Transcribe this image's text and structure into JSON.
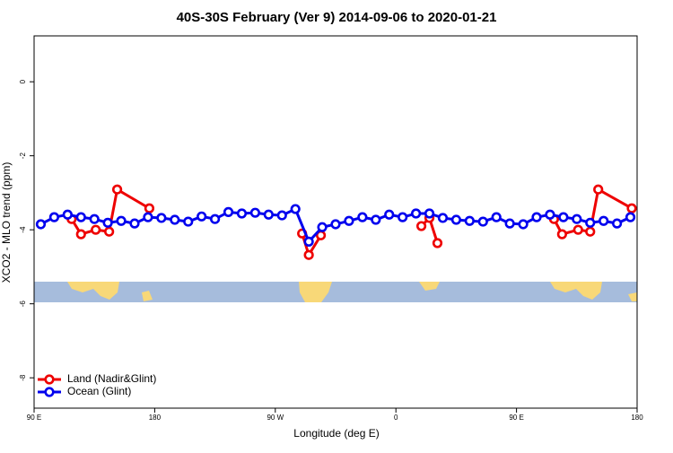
{
  "chart_data": {
    "type": "line",
    "title": "40S-30S February (Ver 9)   2014-09-06 to 2020-01-21",
    "xlabel": "Longitude (deg E)",
    "ylabel": "XCO2 - MLO trend (ppm)",
    "xlim": [
      90,
      540
    ],
    "xticks": [
      {
        "value": 90,
        "label": "90 E"
      },
      {
        "value": 180,
        "label": "180"
      },
      {
        "value": 270,
        "label": "90 W"
      },
      {
        "value": 360,
        "label": "0"
      },
      {
        "value": 450,
        "label": "90 E"
      },
      {
        "value": 540,
        "label": "180"
      }
    ],
    "ylim": [
      -8.82,
      1.24
    ],
    "yticks": [
      0,
      -2,
      -4,
      -6,
      -8
    ],
    "legend": "bottom-left",
    "x": [
      95,
      105,
      115,
      125,
      135,
      145,
      155,
      165,
      175,
      185,
      195,
      205,
      215,
      225,
      235,
      245,
      255,
      265,
      275,
      285,
      295,
      305,
      315,
      325,
      335,
      345,
      355,
      365,
      375,
      385,
      395,
      405,
      415,
      425,
      435,
      445,
      455,
      465,
      475,
      485,
      495,
      505,
      515,
      525,
      535
    ],
    "series": [
      {
        "name": "Land (Nadir&Glint)",
        "color": "#ee0000",
        "x": [
          118,
          125,
          136,
          146,
          152,
          176,
          null,
          290,
          295,
          304,
          null,
          379,
          385,
          391,
          null,
          478,
          484,
          496,
          505,
          511,
          536
        ],
        "values": [
          -3.71,
          -4.12,
          -4.0,
          -4.05,
          -2.91,
          -3.42,
          null,
          -4.1,
          -4.68,
          -4.15,
          null,
          -3.9,
          -3.68,
          -4.36,
          null,
          -3.71,
          -4.12,
          -4.0,
          -4.05,
          -2.91,
          -3.42
        ]
      },
      {
        "name": "Ocean (Glint)",
        "color": "#0000ee",
        "values": [
          -3.85,
          -3.66,
          -3.59,
          -3.66,
          -3.71,
          -3.81,
          -3.76,
          -3.83,
          -3.66,
          -3.68,
          -3.73,
          -3.78,
          -3.64,
          -3.71,
          -3.52,
          -3.56,
          -3.54,
          -3.59,
          -3.61,
          -3.44,
          -4.32,
          -3.93,
          -3.85,
          -3.76,
          -3.66,
          -3.73,
          -3.59,
          -3.66,
          -3.56,
          -3.56,
          -3.68,
          -3.73,
          -3.76,
          -3.78,
          -3.66,
          -3.83,
          -3.85,
          -3.66,
          -3.59,
          -3.66,
          -3.71,
          -3.81,
          -3.76,
          -3.83,
          -3.66
        ]
      }
    ]
  }
}
